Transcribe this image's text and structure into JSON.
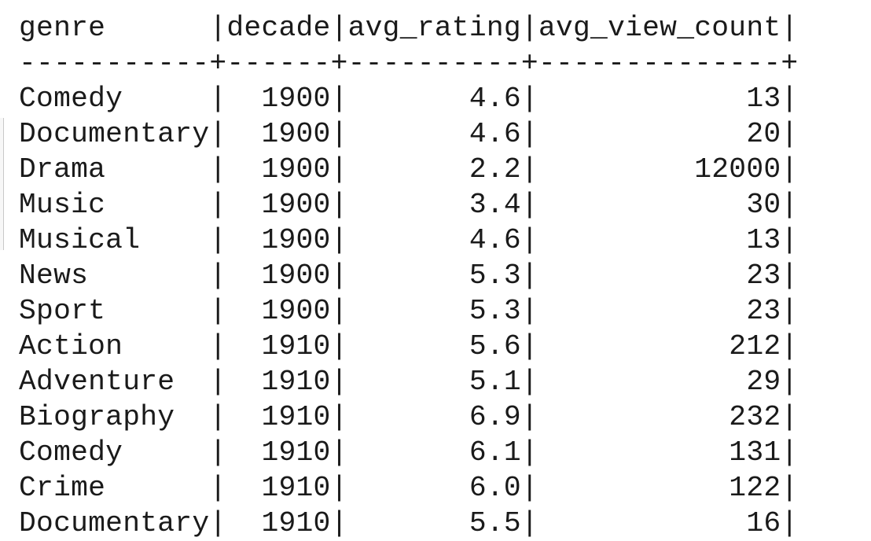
{
  "table": {
    "header": "genre      |decade|avg_rating|avg_view_count|",
    "separator": "-----------+------+----------+--------------+",
    "rows": [
      "Comedy     |  1900|       4.6|            13|",
      "Documentary|  1900|       4.6|            20|",
      "Drama      |  1900|       2.2|         12000|",
      "Music      |  1900|       3.4|            30|",
      "Musical    |  1900|       4.6|            13|",
      "News       |  1900|       5.3|            23|",
      "Sport      |  1900|       5.3|            23|",
      "Action     |  1910|       5.6|           212|",
      "Adventure  |  1910|       5.1|            29|",
      "Biography  |  1910|       6.9|           232|",
      "Comedy     |  1910|       6.1|           131|",
      "Crime      |  1910|       6.0|           122|",
      "Documentary|  1910|       5.5|            16|"
    ]
  }
}
